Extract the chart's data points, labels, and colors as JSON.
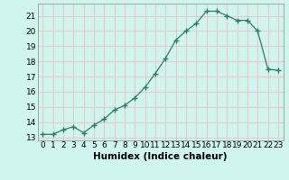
{
  "x": [
    0,
    1,
    2,
    3,
    4,
    5,
    6,
    7,
    8,
    9,
    10,
    11,
    12,
    13,
    14,
    15,
    16,
    17,
    18,
    19,
    20,
    21,
    22,
    23
  ],
  "y": [
    13.2,
    13.2,
    13.5,
    13.7,
    13.3,
    13.8,
    14.2,
    14.8,
    15.1,
    15.6,
    16.3,
    17.2,
    18.2,
    19.4,
    20.0,
    20.5,
    21.3,
    21.3,
    21.0,
    20.7,
    20.7,
    20.0,
    17.5,
    17.4
  ],
  "xlabel": "Humidex (Indice chaleur)",
  "xlim": [
    -0.5,
    23.5
  ],
  "ylim": [
    12.8,
    21.8
  ],
  "yticks": [
    13,
    14,
    15,
    16,
    17,
    18,
    19,
    20,
    21
  ],
  "xticks": [
    0,
    1,
    2,
    3,
    4,
    5,
    6,
    7,
    8,
    9,
    10,
    11,
    12,
    13,
    14,
    15,
    16,
    17,
    18,
    19,
    20,
    21,
    22,
    23
  ],
  "line_color": "#2e7d6b",
  "marker_color": "#2e7d6b",
  "bg_color": "#cff5ee",
  "grid_color": "#e8c8c8",
  "label_fontsize": 7.5,
  "tick_fontsize": 6.5
}
